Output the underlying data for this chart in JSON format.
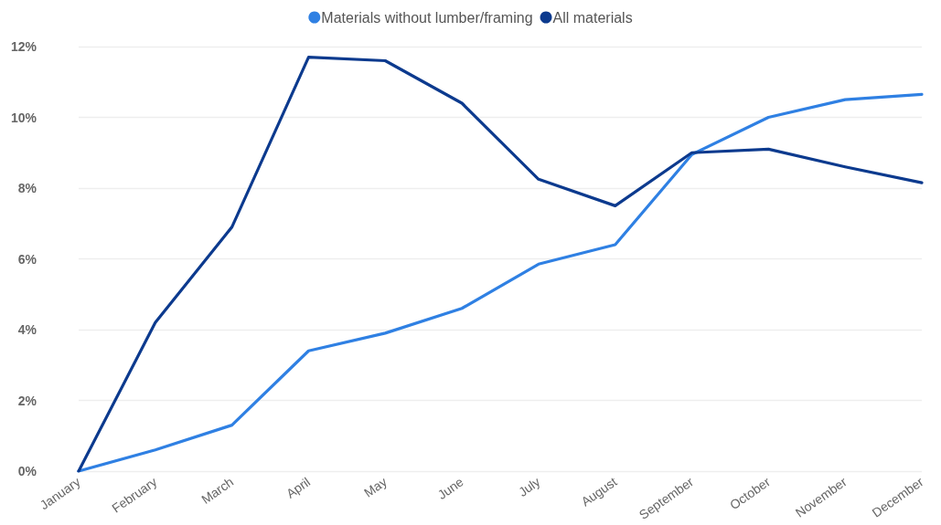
{
  "chart_data": {
    "type": "line",
    "categories": [
      "January",
      "February",
      "March",
      "April",
      "May",
      "June",
      "July",
      "August",
      "September",
      "October",
      "November",
      "December"
    ],
    "series": [
      {
        "name": "Materials without lumber/framing",
        "color": "#2f80e3",
        "values": [
          0,
          0.6,
          1.3,
          3.4,
          3.9,
          4.6,
          5.85,
          6.4,
          8.95,
          10.0,
          10.5,
          10.65
        ]
      },
      {
        "name": "All materials",
        "color": "#0c3a8e",
        "values": [
          0,
          4.2,
          6.9,
          11.7,
          11.6,
          10.4,
          8.25,
          7.5,
          9.0,
          9.1,
          8.6,
          8.15
        ]
      }
    ],
    "ylim": [
      0,
      12
    ],
    "yticks": [
      {
        "value": 0,
        "label": "0%"
      },
      {
        "value": 2,
        "label": "2%"
      },
      {
        "value": 4,
        "label": "4%"
      },
      {
        "value": 6,
        "label": "6%"
      },
      {
        "value": 8,
        "label": "8%"
      },
      {
        "value": 10,
        "label": "10%"
      },
      {
        "value": 12,
        "label": "12%"
      }
    ],
    "grid": "y",
    "legend": "top",
    "marker": "none",
    "line_style": "solid"
  }
}
